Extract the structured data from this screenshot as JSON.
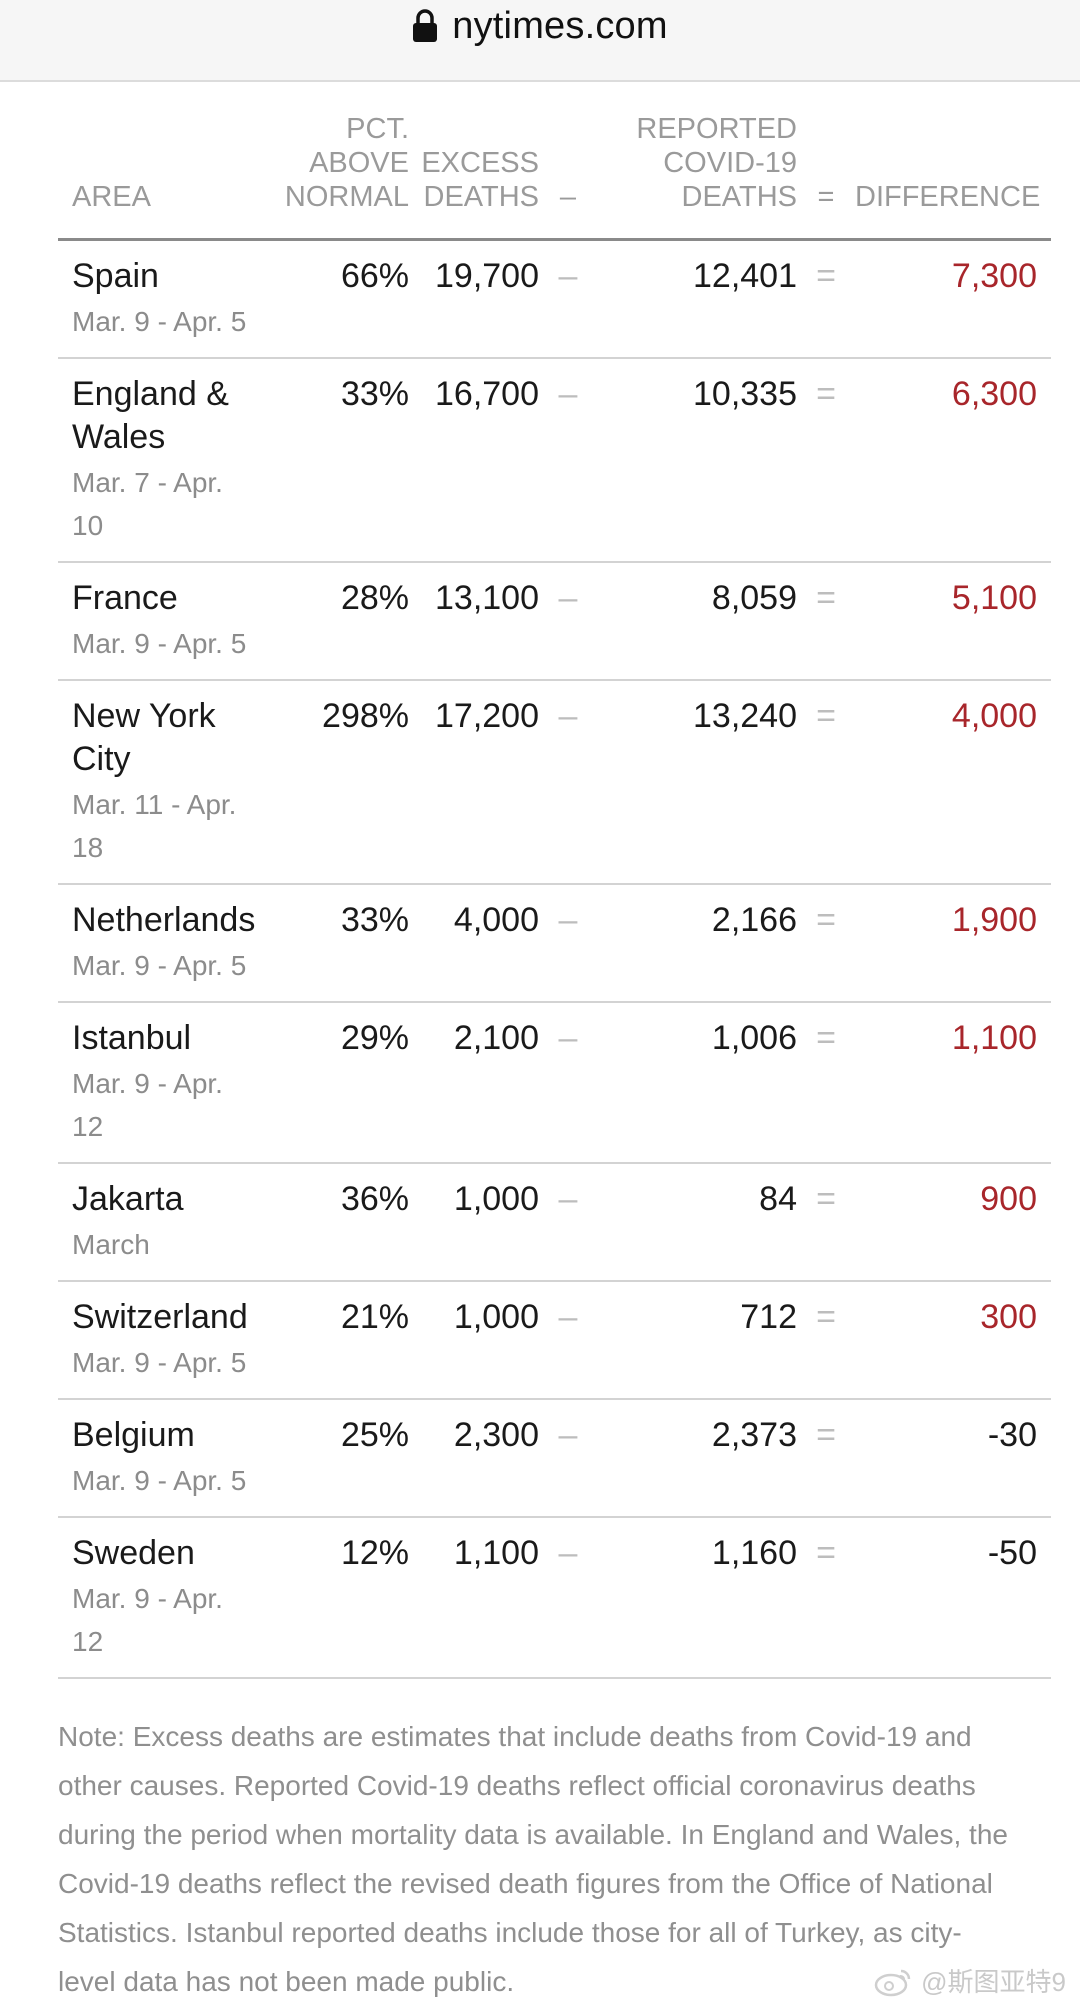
{
  "browser": {
    "url": "nytimes.com",
    "lock_icon": "lock-icon"
  },
  "table": {
    "headers": {
      "area": "AREA",
      "pct_line1": "PCT.",
      "pct_line2": "ABOVE",
      "pct_line3": "NORMAL",
      "excess_line1": "EXCESS",
      "excess_line2": "DEATHS",
      "minus": "–",
      "reported_line1": "REPORTED",
      "reported_line2": "COVID-19",
      "reported_line3": "DEATHS",
      "equals": "=",
      "difference": "DIFFERENCE"
    },
    "rows": [
      {
        "area": "Spain",
        "dates": "Mar. 9 - Apr. 5",
        "pct": "66%",
        "excess": "19,700",
        "minus": "–",
        "reported": "12,401",
        "equals": "=",
        "difference": "7,300",
        "sign": "pos"
      },
      {
        "area": "England & Wales",
        "dates": "Mar. 7 - Apr. 10",
        "pct": "33%",
        "excess": "16,700",
        "minus": "–",
        "reported": "10,335",
        "equals": "=",
        "difference": "6,300",
        "sign": "pos"
      },
      {
        "area": "France",
        "dates": "Mar. 9 - Apr. 5",
        "pct": "28%",
        "excess": "13,100",
        "minus": "–",
        "reported": "8,059",
        "equals": "=",
        "difference": "5,100",
        "sign": "pos"
      },
      {
        "area": "New York City",
        "dates": "Mar. 11 - Apr. 18",
        "pct": "298%",
        "excess": "17,200",
        "minus": "–",
        "reported": "13,240",
        "equals": "=",
        "difference": "4,000",
        "sign": "pos"
      },
      {
        "area": "Netherlands",
        "dates": "Mar. 9 - Apr. 5",
        "pct": "33%",
        "excess": "4,000",
        "minus": "–",
        "reported": "2,166",
        "equals": "=",
        "difference": "1,900",
        "sign": "pos"
      },
      {
        "area": "Istanbul",
        "dates": "Mar. 9 - Apr. 12",
        "pct": "29%",
        "excess": "2,100",
        "minus": "–",
        "reported": "1,006",
        "equals": "=",
        "difference": "1,100",
        "sign": "pos"
      },
      {
        "area": "Jakarta",
        "dates": "March",
        "pct": "36%",
        "excess": "1,000",
        "minus": "–",
        "reported": "84",
        "equals": "=",
        "difference": "900",
        "sign": "pos"
      },
      {
        "area": "Switzerland",
        "dates": "Mar. 9 - Apr. 5",
        "pct": "21%",
        "excess": "1,000",
        "minus": "–",
        "reported": "712",
        "equals": "=",
        "difference": "300",
        "sign": "pos"
      },
      {
        "area": "Belgium",
        "dates": "Mar. 9 - Apr. 5",
        "pct": "25%",
        "excess": "2,300",
        "minus": "–",
        "reported": "2,373",
        "equals": "=",
        "difference": "-30",
        "sign": "neg"
      },
      {
        "area": "Sweden",
        "dates": "Mar. 9 - Apr. 12",
        "pct": "12%",
        "excess": "1,100",
        "minus": "–",
        "reported": "1,160",
        "equals": "=",
        "difference": "-50",
        "sign": "neg"
      }
    ]
  },
  "note": "Note: Excess deaths are estimates that include deaths from Covid-19 and other causes. Reported Covid-19 deaths reflect official coronavirus deaths during the period when mortality data is available. In England and Wales, the Covid-19 deaths reflect the revised death figures from the Office of National Statistics. Istanbul reported deaths include those for all of Turkey, as city-level data has not been made public.",
  "watermark": {
    "text": "@斯图亚特9",
    "icon": "weibo-icon"
  },
  "colors": {
    "positive_difference": "#a8262b",
    "header_text": "#9a9a9a",
    "secondary_text": "#8c8c8c"
  }
}
